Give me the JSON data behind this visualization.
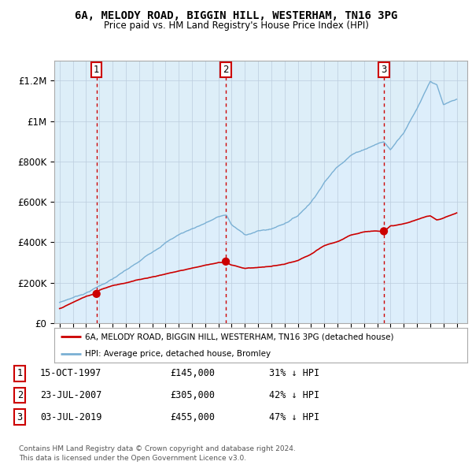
{
  "title": "6A, MELODY ROAD, BIGGIN HILL, WESTERHAM, TN16 3PG",
  "subtitle": "Price paid vs. HM Land Registry's House Price Index (HPI)",
  "ylim": [
    0,
    1300000
  ],
  "yticks": [
    0,
    200000,
    400000,
    600000,
    800000,
    1000000,
    1200000
  ],
  "ytick_labels": [
    "£0",
    "£200K",
    "£400K",
    "£600K",
    "£800K",
    "£1M",
    "£1.2M"
  ],
  "sale_dates_num": [
    1997.79,
    2007.56,
    2019.5
  ],
  "sale_prices": [
    145000,
    305000,
    455000
  ],
  "sale_labels": [
    "1",
    "2",
    "3"
  ],
  "sale_color": "#cc0000",
  "hpi_color": "#7ab0d4",
  "hpi_fill_color": "#ddeeff",
  "legend_sale": "6A, MELODY ROAD, BIGGIN HILL, WESTERHAM, TN16 3PG (detached house)",
  "legend_hpi": "HPI: Average price, detached house, Bromley",
  "table_data": [
    [
      "1",
      "15-OCT-1997",
      "£145,000",
      "31% ↓ HPI"
    ],
    [
      "2",
      "23-JUL-2007",
      "£305,000",
      "42% ↓ HPI"
    ],
    [
      "3",
      "03-JUL-2019",
      "£455,000",
      "47% ↓ HPI"
    ]
  ],
  "footer": "Contains HM Land Registry data © Crown copyright and database right 2024.\nThis data is licensed under the Open Government Licence v3.0.",
  "bg_color": "#ffffff",
  "plot_bg_color": "#ddeef8"
}
